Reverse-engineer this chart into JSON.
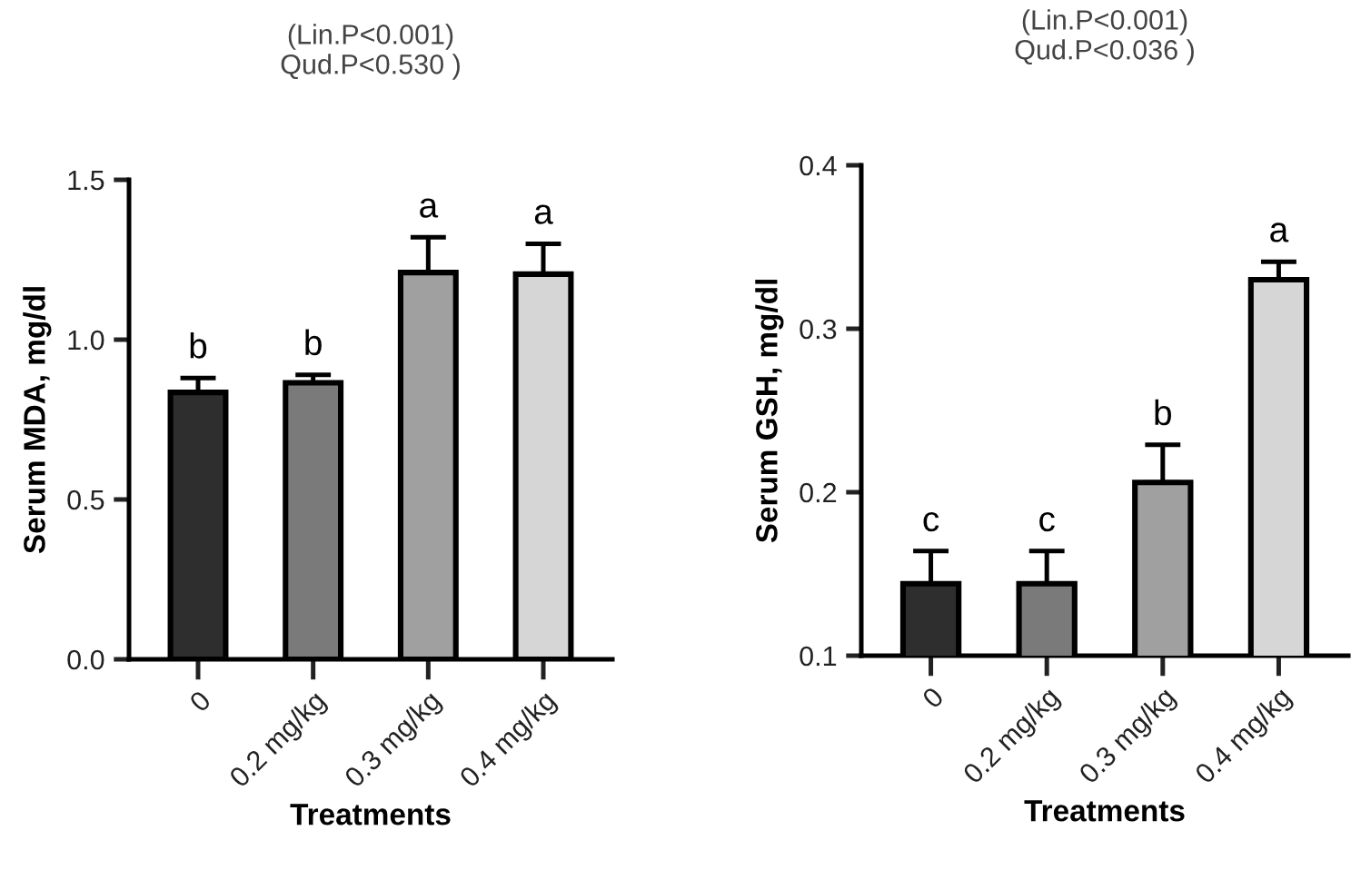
{
  "chart_data": [
    {
      "type": "bar",
      "title": "(Lin.P<0.001)\nQud.P<0.530 )",
      "xlabel": "Treatments",
      "ylabel": "Serum MDA, mg/dl",
      "categories": [
        "0",
        "0.2 mg/kg",
        "0.3 mg/kg",
        "0.4 mg/kg"
      ],
      "values": [
        0.835,
        0.865,
        1.21,
        1.205
      ],
      "colors": [
        "#2e2e2e",
        "#7a7a7a",
        "#a0a0a0",
        "#d6d6d6"
      ],
      "errors": [
        [
          0.835,
          0.88
        ],
        [
          0.865,
          0.89
        ],
        [
          1.21,
          1.32
        ],
        [
          1.205,
          1.3
        ]
      ],
      "ylim": [
        0,
        1.5
      ],
      "yticks": [
        {
          "value": 0,
          "label": "0.0"
        },
        0.5,
        {
          "value": 1,
          "label": "1.0"
        },
        1.5
      ],
      "grid": false,
      "legend": false,
      "annotations": [
        {
          "text": "b",
          "x": "0",
          "y": 0.88
        },
        {
          "text": "b",
          "x": "0.2 mg/kg",
          "y": 0.89
        },
        {
          "text": "a",
          "x": "0.3 mg/kg",
          "y": 1.32
        },
        {
          "text": "a",
          "x": "0.4 mg/kg",
          "y": 1.3
        }
      ]
    },
    {
      "type": "bar",
      "title": "(Lin.P<0.001)\nQud.P<0.036 )",
      "xlabel": "Treatments",
      "ylabel": "Serum GSH, mg/dl",
      "categories": [
        "0",
        "0.2 mg/kg",
        "0.3 mg/kg",
        "0.4 mg/kg"
      ],
      "values": [
        0.144,
        0.144,
        0.206,
        0.33
      ],
      "colors": [
        "#2e2e2e",
        "#7a7a7a",
        "#a0a0a0",
        "#d6d6d6"
      ],
      "errors": [
        [
          0.144,
          0.164
        ],
        [
          0.144,
          0.164
        ],
        [
          0.206,
          0.229
        ],
        [
          0.33,
          0.341
        ]
      ],
      "ylim": [
        0.1,
        0.4
      ],
      "yticks": [
        0.1,
        0.2,
        0.3,
        0.4
      ],
      "grid": false,
      "legend": false,
      "annotations": [
        {
          "text": "c",
          "x": "0",
          "y": 0.164
        },
        {
          "text": "c",
          "x": "0.2 mg/kg",
          "y": 0.164
        },
        {
          "text": "b",
          "x": "0.3 mg/kg",
          "y": 0.229
        },
        {
          "text": "a",
          "x": "0.4 mg/kg",
          "y": 0.341
        }
      ]
    }
  ]
}
